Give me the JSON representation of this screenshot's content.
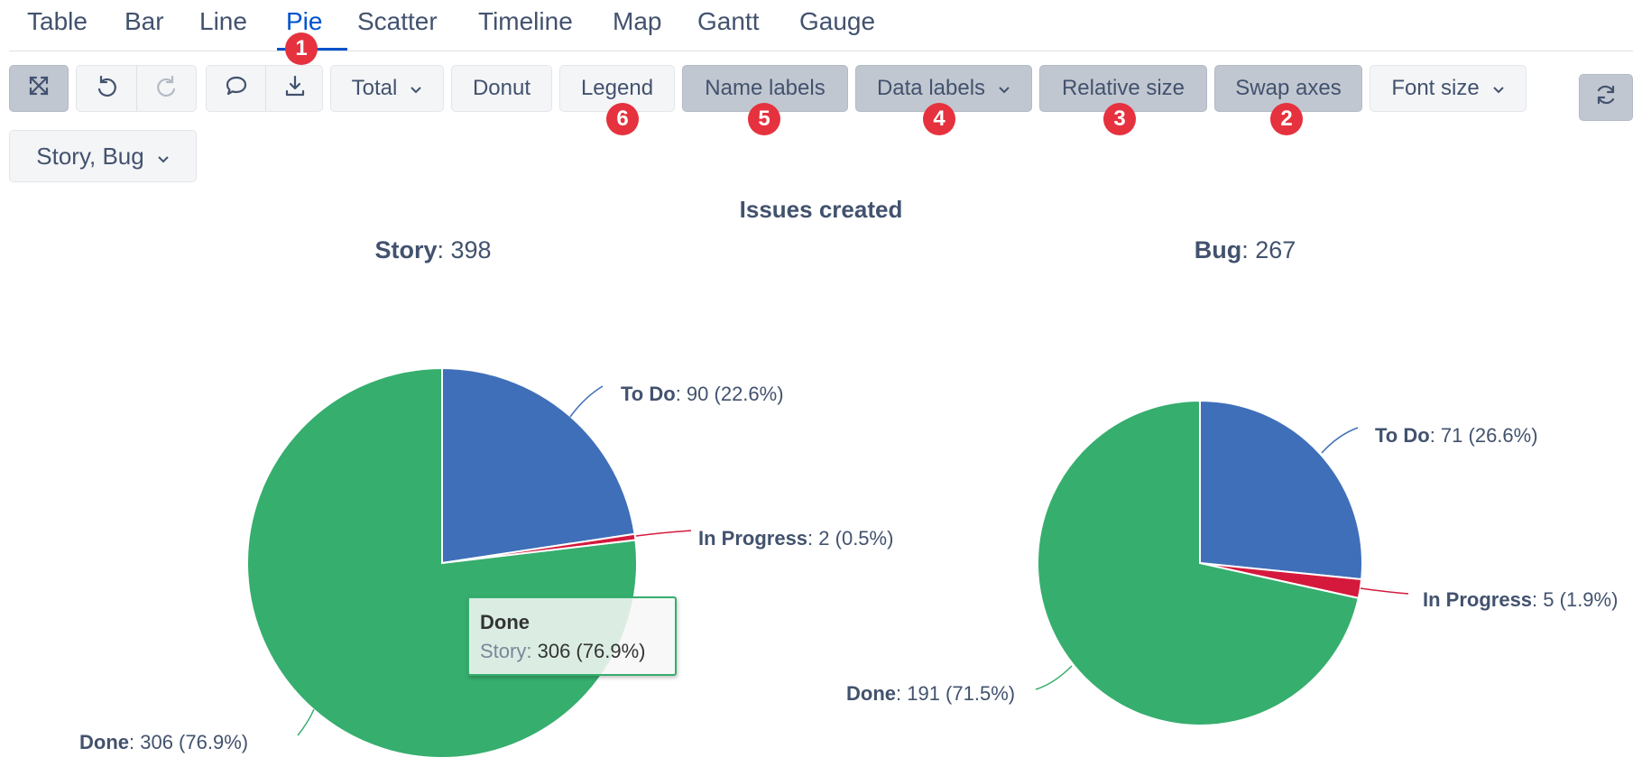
{
  "tabs": [
    "Table",
    "Bar",
    "Line",
    "Pie",
    "Scatter",
    "Timeline",
    "Map",
    "Gantt",
    "Gauge"
  ],
  "active_tab": "Pie",
  "toolbar": {
    "total_label": "Total",
    "donut_label": "Donut",
    "legend_label": "Legend",
    "name_labels_label": "Name labels",
    "data_labels_label": "Data labels",
    "relative_size_label": "Relative size",
    "swap_axes_label": "Swap axes",
    "font_size_label": "Font size",
    "series_select_label": "Story, Bug"
  },
  "badges": [
    "1",
    "2",
    "3",
    "4",
    "5",
    "6"
  ],
  "colors": {
    "todo": "#3f6fb9",
    "in_progress": "#d4193c",
    "done": "#36ae6e",
    "accent": "#0052cc",
    "badge": "#e5323e"
  },
  "chart_data": {
    "type": "pie",
    "title": "Issues created",
    "pies": [
      {
        "name": "Story",
        "total_text": "398",
        "slices": [
          {
            "name": "To Do",
            "value": 90,
            "text": "90 (22.6%)"
          },
          {
            "name": "In Progress",
            "value": 2,
            "text": "2 (0.5%)"
          },
          {
            "name": "Done",
            "value": 306,
            "text": "306 (76.9%)"
          }
        ]
      },
      {
        "name": "Bug",
        "total_text": "267",
        "slices": [
          {
            "name": "To Do",
            "value": 71,
            "text": "71 (26.6%)"
          },
          {
            "name": "In Progress",
            "value": 5,
            "text": "5 (1.9%)"
          },
          {
            "name": "Done",
            "value": 191,
            "text": "191 (71.5%)"
          }
        ]
      }
    ],
    "tooltip": {
      "title": "Done",
      "series": "Story",
      "value_text": "306 (76.9%)"
    }
  }
}
